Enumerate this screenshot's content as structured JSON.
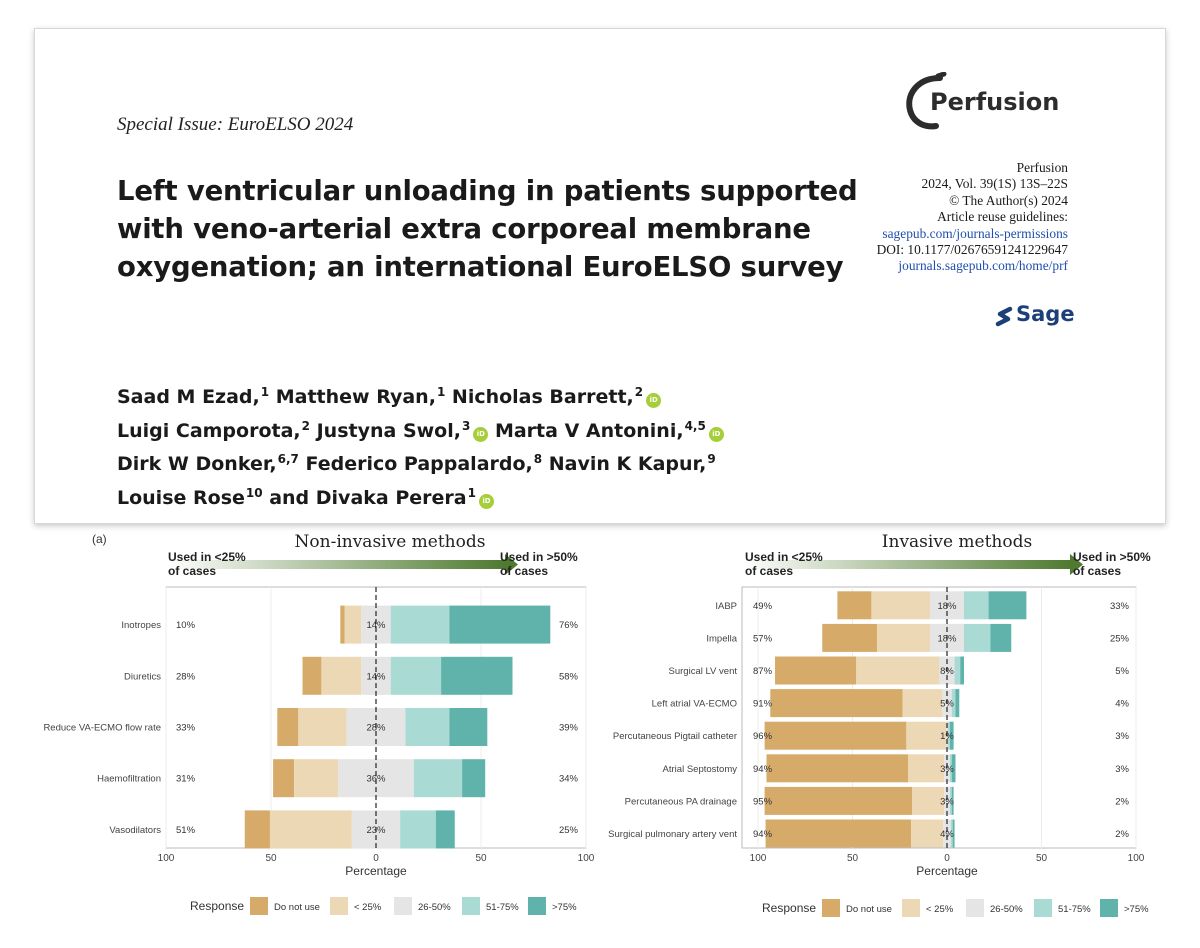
{
  "header": {
    "special_issue": "Special Issue: EuroELSO 2024",
    "title_lines": [
      "Left ventricular unloading in patients supported",
      "with veno-arterial extra corporeal membrane",
      "oxygenation; an international EuroELSO survey"
    ],
    "journal_logo": "Perfusion",
    "meta": {
      "journal": "Perfusion",
      "volume": "2024, Vol. 39(1S) 13S–22S",
      "copyright": "© The Author(s) 2024",
      "reuse": "Article reuse guidelines:",
      "permissions_link": "sagepub.com/journals-permissions",
      "doi": "DOI: 10.1177/02676591241229647",
      "journal_link": "journals.sagepub.com/home/prf"
    },
    "publisher": "Sage",
    "author_lines": [
      [
        {
          "name": "Saad M Ezad,",
          "sup": "1"
        },
        {
          "name": " Matthew Ryan,",
          "sup": "1"
        },
        {
          "name": " Nicholas Barrett,",
          "sup": "2",
          "orcid": true
        }
      ],
      [
        {
          "name": "Luigi Camporota,",
          "sup": "2"
        },
        {
          "name": " Justyna Swol,",
          "sup": "3",
          "orcid": true
        },
        {
          "name": " Marta V Antonini,",
          "sup": "4,5",
          "orcid": true
        }
      ],
      [
        {
          "name": "Dirk W Donker,",
          "sup": "6,7"
        },
        {
          "name": " Federico Pappalardo,",
          "sup": "8"
        },
        {
          "name": " Navin K Kapur,",
          "sup": "9"
        }
      ],
      [
        {
          "name": "Louise Rose",
          "sup": "10"
        },
        {
          "name": " and Divaka Perera",
          "sup": "1",
          "orcid": true
        }
      ]
    ]
  },
  "colors": {
    "do_not_use": "#d6ab6a",
    "lt25": "#ecd8b4",
    "p26_50": "#e5e5e5",
    "p51_75": "#a9dad4",
    "gt75": "#5fb3aa",
    "arrow_start": "#ffffff",
    "arrow_end": "#4f7a30"
  },
  "chart_data": [
    {
      "type": "bar",
      "panel": "(a)",
      "title": "Non-invasive methods",
      "left_label": [
        "Used in <25%",
        "of cases"
      ],
      "right_label": [
        "Used in >50%",
        "of cases"
      ],
      "xlabel": "Percentage",
      "xticks": [
        100,
        50,
        0,
        50,
        100
      ],
      "xlim": [
        -100,
        100
      ],
      "legend_title": "Response",
      "legend": [
        "Do not use",
        "< 25%",
        "26-50%",
        "51-75%",
        ">75%"
      ],
      "categories": [
        "Inotropes",
        "Diuretics",
        "Reduce VA-ECMO flow rate",
        "Haemofiltration",
        "Vasodilators"
      ],
      "left_pct": [
        "10%",
        "28%",
        "33%",
        "31%",
        "51%"
      ],
      "center_pct": [
        "14%",
        "14%",
        "28%",
        "36%",
        "23%"
      ],
      "right_pct": [
        "76%",
        "58%",
        "39%",
        "34%",
        "25%"
      ],
      "series": [
        {
          "name": "Do not use",
          "values": [
            2,
            9,
            10,
            10,
            12
          ]
        },
        {
          "name": "< 25%",
          "values": [
            8,
            19,
            23,
            21,
            39
          ]
        },
        {
          "name": "26-50%",
          "values": [
            14,
            14,
            28,
            36,
            23
          ]
        },
        {
          "name": "51-75%",
          "values": [
            28,
            24,
            21,
            23,
            17
          ]
        },
        {
          "name": ">75%",
          "values": [
            48,
            34,
            18,
            11,
            9
          ]
        }
      ]
    },
    {
      "type": "bar",
      "title": "Invasive methods",
      "left_label": [
        "Used in <25%",
        "of cases"
      ],
      "right_label": [
        "Used in >50%",
        "of cases"
      ],
      "xlabel": "Percentage",
      "xticks": [
        100,
        50,
        0,
        50,
        100
      ],
      "xlim": [
        -100,
        100
      ],
      "legend_title": "Response",
      "legend": [
        "Do not use",
        "< 25%",
        "26-50%",
        "51-75%",
        ">75%"
      ],
      "categories": [
        "IABP",
        "Impella",
        "Surgical LV vent",
        "Left atrial VA-ECMO",
        "Percutaneous Pigtail catheter",
        "Atrial Septostomy",
        "Percutaneous PA drainage",
        "Surgical pulmonary artery vent"
      ],
      "left_pct": [
        "49%",
        "57%",
        "87%",
        "91%",
        "96%",
        "94%",
        "95%",
        "94%"
      ],
      "center_pct": [
        "18%",
        "18%",
        "8%",
        "5%",
        "1%",
        "3%",
        "3%",
        "4%"
      ],
      "right_pct": [
        "33%",
        "25%",
        "5%",
        "4%",
        "3%",
        "3%",
        "2%",
        "2%"
      ],
      "series": [
        {
          "name": "Do not use",
          "values": [
            18,
            29,
            43,
            70,
            75,
            75,
            78,
            77
          ]
        },
        {
          "name": "< 25%",
          "values": [
            31,
            28,
            44,
            21,
            21,
            19,
            17,
            17
          ]
        },
        {
          "name": "26-50%",
          "values": [
            18,
            18,
            8,
            5,
            1,
            3,
            3,
            4
          ]
        },
        {
          "name": "51-75%",
          "values": [
            13,
            14,
            3,
            2,
            1,
            1,
            1,
            1
          ]
        },
        {
          "name": ">75%",
          "values": [
            20,
            11,
            2,
            2,
            2,
            2,
            1,
            1
          ]
        }
      ]
    }
  ]
}
